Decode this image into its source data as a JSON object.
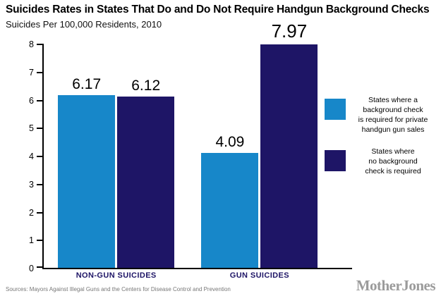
{
  "header": {
    "title": "Suicides Rates in States That Do and Do Not Require Handgun Background Checks",
    "subtitle": "Suicides Per 100,000 Residents, 2010"
  },
  "chart_data": {
    "type": "bar",
    "categories": [
      "NON-GUN SUICIDES",
      "GUN SUICIDES"
    ],
    "series": [
      {
        "name": "States where a background check is required for private handgun gun sales",
        "color": "#1787c9",
        "values": [
          6.17,
          4.09
        ]
      },
      {
        "name": "States where no background check is required",
        "color": "#1e1566",
        "values": [
          6.12,
          7.97
        ]
      }
    ],
    "title": "Suicides Rates in States That Do and Do Not Require Handgun Background Checks",
    "subtitle": "Suicides Per 100,000 Residents, 2010",
    "xlabel": "",
    "ylabel": "",
    "ylim": [
      0,
      8
    ],
    "yticks": [
      0,
      1,
      2,
      3,
      4,
      5,
      6,
      7,
      8
    ],
    "grid": false,
    "legend_position": "right"
  },
  "legend": {
    "items": [
      {
        "label": "States where a\nbackground check\nis required for private\nhandgun gun sales",
        "color": "#1787c9"
      },
      {
        "label": "States where\nno background\ncheck is required",
        "color": "#1e1566"
      }
    ]
  },
  "footer": {
    "sources": "Sources: Mayors Against Illegal Guns and the Centers for Disease Control and Prevention",
    "brand": "MotherJones"
  }
}
